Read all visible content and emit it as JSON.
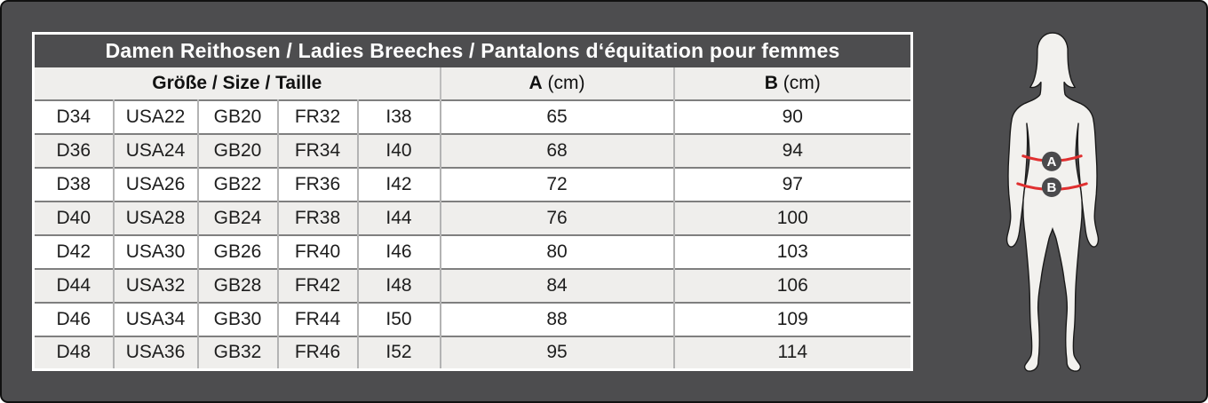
{
  "panel": {
    "title": "Damen Reithosen / Ladies Breeches / Pantalons d‘équitation pour femmes"
  },
  "table": {
    "header": {
      "size_label": "Größe / Size / Taille",
      "col_a": {
        "label": "A",
        "unit": "(cm)"
      },
      "col_b": {
        "label": "B",
        "unit": "(cm)"
      }
    },
    "columns": [
      "d",
      "usa",
      "gb",
      "fr",
      "i",
      "a",
      "b"
    ],
    "rows": [
      {
        "d": "D34",
        "usa": "USA22",
        "gb": "GB20",
        "fr": "FR32",
        "i": "I38",
        "a": "65",
        "b": "90"
      },
      {
        "d": "D36",
        "usa": "USA24",
        "gb": "GB20",
        "fr": "FR34",
        "i": "I40",
        "a": "68",
        "b": "94"
      },
      {
        "d": "D38",
        "usa": "USA26",
        "gb": "GB22",
        "fr": "FR36",
        "i": "I42",
        "a": "72",
        "b": "97"
      },
      {
        "d": "D40",
        "usa": "USA28",
        "gb": "GB24",
        "fr": "FR38",
        "i": "I44",
        "a": "76",
        "b": "100"
      },
      {
        "d": "D42",
        "usa": "USA30",
        "gb": "GB26",
        "fr": "FR40",
        "i": "I46",
        "a": "80",
        "b": "103"
      },
      {
        "d": "D44",
        "usa": "USA32",
        "gb": "GB28",
        "fr": "FR42",
        "i": "I48",
        "a": "84",
        "b": "106"
      },
      {
        "d": "D46",
        "usa": "USA34",
        "gb": "GB30",
        "fr": "FR44",
        "i": "I50",
        "a": "88",
        "b": "109"
      },
      {
        "d": "D48",
        "usa": "USA36",
        "gb": "GB32",
        "fr": "FR46",
        "i": "I52",
        "a": "95",
        "b": "114"
      }
    ]
  },
  "figure": {
    "marker_a": "A",
    "marker_b": "B"
  },
  "colors": {
    "background": "#4d4d4f",
    "row": "#ffffff",
    "row_alt": "#efeeec",
    "measure_line": "#e03030",
    "marker_bg": "#4a4a4c",
    "marker_text": "#ffffff",
    "silhouette": "#f2f1ee",
    "title_text": "#ffffff",
    "cell_text": "#1d1d1d"
  }
}
